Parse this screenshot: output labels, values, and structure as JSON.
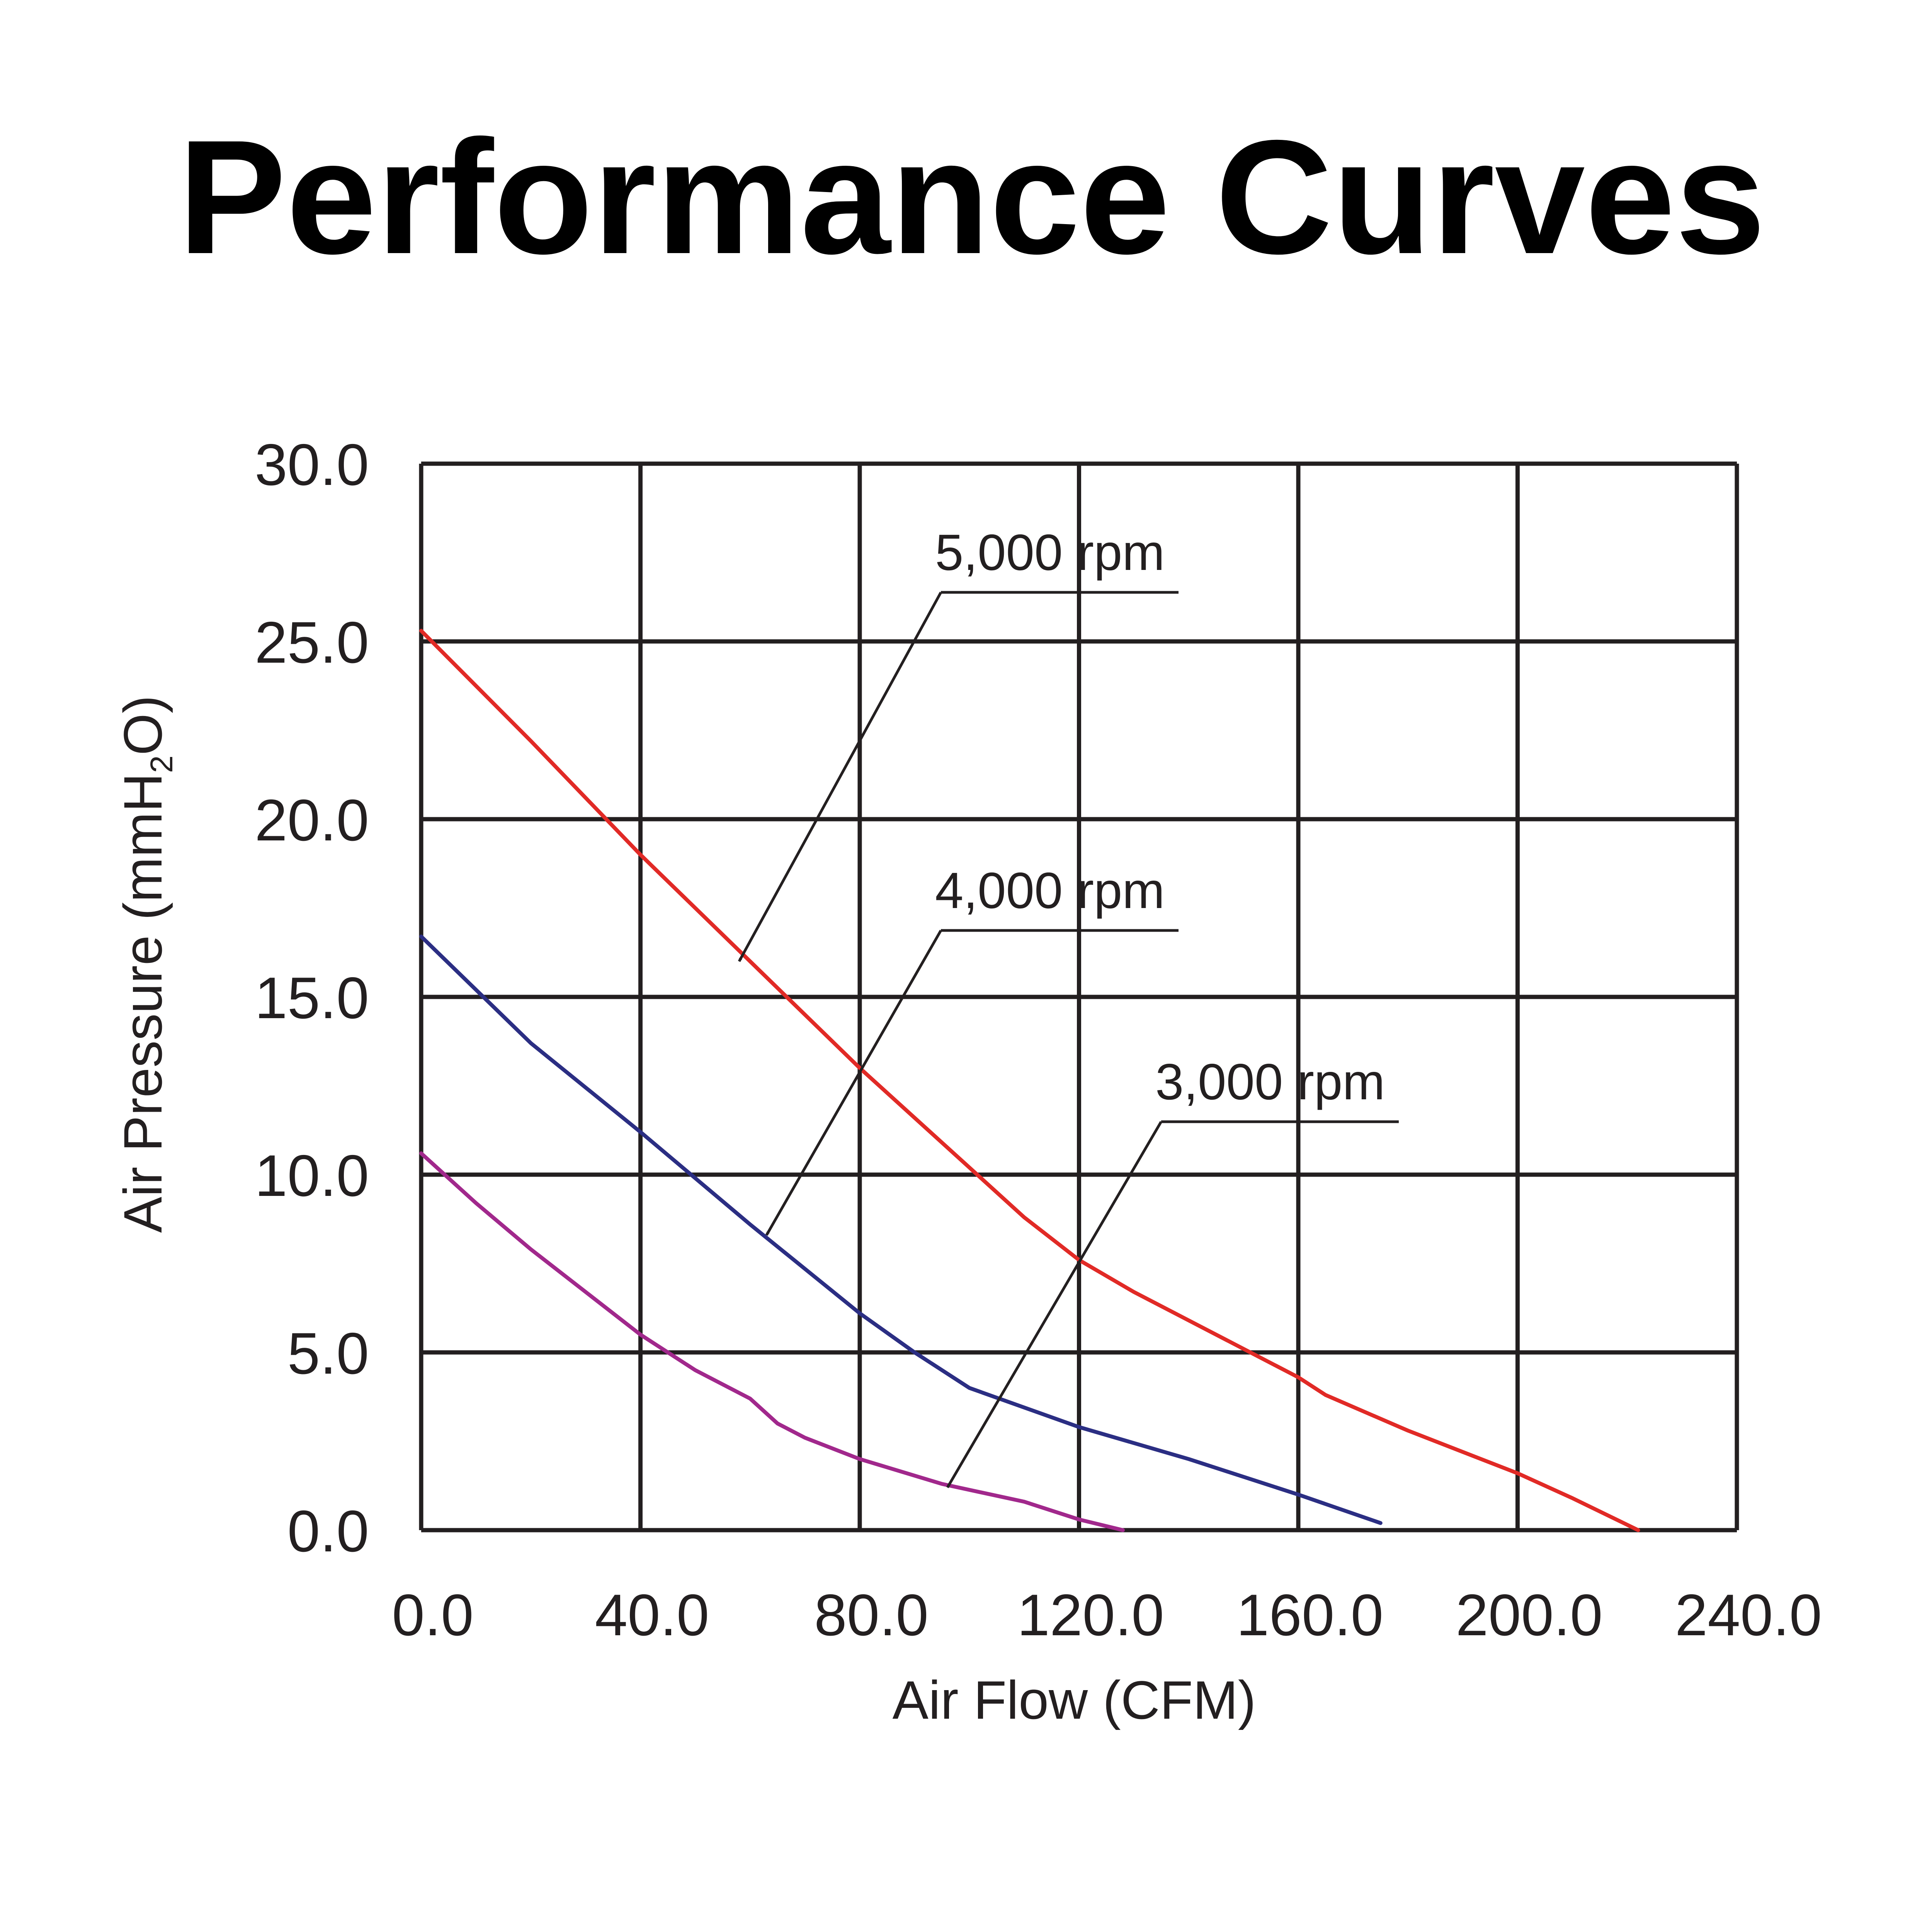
{
  "chart_data": {
    "type": "line",
    "title": "Performance Curves",
    "xlabel": "Air Flow (CFM)",
    "ylabel": "Air Pressure (mmH",
    "ylabel_subscript": "2",
    "ylabel_suffix": "O)",
    "xlim": [
      0,
      240
    ],
    "ylim": [
      0,
      30
    ],
    "x_ticks": [
      "0.0",
      "40.0",
      "80.0",
      "120.0",
      "160.0",
      "200.0",
      "240.0"
    ],
    "y_ticks": [
      "0.0",
      "5.0",
      "10.0",
      "15.0",
      "20.0",
      "25.0",
      "30.0"
    ],
    "grid": true,
    "series": [
      {
        "name": "5,000 rpm",
        "color": "#e12a26",
        "points": [
          [
            0,
            25.3
          ],
          [
            20,
            22.2
          ],
          [
            40,
            19.0
          ],
          [
            60,
            16.0
          ],
          [
            80,
            13.0
          ],
          [
            100,
            10.2
          ],
          [
            110,
            8.8
          ],
          [
            120,
            7.6
          ],
          [
            130,
            6.7
          ],
          [
            140,
            5.9
          ],
          [
            160,
            4.3
          ],
          [
            165,
            3.8
          ],
          [
            180,
            2.8
          ],
          [
            200,
            1.6
          ],
          [
            210,
            0.9
          ],
          [
            222,
            0.0
          ]
        ],
        "annotation_point": [
          58,
          16.0
        ]
      },
      {
        "name": "4,000 rpm",
        "color": "#2b2e83",
        "points": [
          [
            0,
            16.7
          ],
          [
            20,
            13.7
          ],
          [
            40,
            11.2
          ],
          [
            60,
            8.6
          ],
          [
            80,
            6.1
          ],
          [
            90,
            5.0
          ],
          [
            100,
            4.0
          ],
          [
            120,
            2.9
          ],
          [
            140,
            2.0
          ],
          [
            160,
            1.0
          ],
          [
            175,
            0.2
          ]
        ],
        "annotation_point": [
          63,
          8.3
        ]
      },
      {
        "name": "3,000 rpm",
        "color": "#a1288c",
        "points": [
          [
            0,
            10.6
          ],
          [
            10,
            9.2
          ],
          [
            20,
            7.9
          ],
          [
            30,
            6.7
          ],
          [
            40,
            5.5
          ],
          [
            50,
            4.5
          ],
          [
            60,
            3.7
          ],
          [
            65,
            3.0
          ],
          [
            70,
            2.6
          ],
          [
            80,
            2.0
          ],
          [
            95,
            1.3
          ],
          [
            110,
            0.8
          ],
          [
            120,
            0.3
          ],
          [
            128,
            0.0
          ]
        ],
        "annotation_point": [
          96,
          1.2
        ]
      }
    ],
    "legend": "annotations with leader arrows"
  }
}
